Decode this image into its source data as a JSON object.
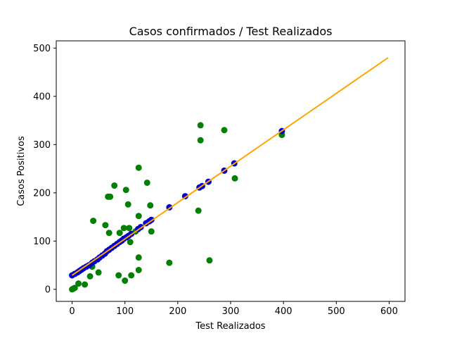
{
  "chart_data": {
    "type": "scatter",
    "title": "Casos confirmados / Test Realizados",
    "xlabel": "Test Realizados",
    "ylabel": "Casos Positivos",
    "xlim": [
      -30,
      630
    ],
    "ylim": [
      -25,
      515
    ],
    "xticks": [
      0,
      100,
      200,
      300,
      400,
      500,
      600
    ],
    "yticks": [
      0,
      100,
      200,
      300,
      400,
      500
    ],
    "grid": false,
    "series": [
      {
        "kind": "scatter",
        "color": "#008000",
        "points": [
          [
            0,
            0
          ],
          [
            2,
            1
          ],
          [
            5,
            3
          ],
          [
            12,
            12
          ],
          [
            24,
            10
          ],
          [
            34,
            27
          ],
          [
            40,
            142
          ],
          [
            38,
            47
          ],
          [
            50,
            35
          ],
          [
            63,
            133
          ],
          [
            68,
            192
          ],
          [
            72,
            192
          ],
          [
            70,
            117
          ],
          [
            80,
            215
          ],
          [
            90,
            117
          ],
          [
            88,
            29
          ],
          [
            98,
            127
          ],
          [
            100,
            18
          ],
          [
            102,
            206
          ],
          [
            106,
            176
          ],
          [
            108,
            127
          ],
          [
            110,
            98
          ],
          [
            112,
            29
          ],
          [
            120,
            120
          ],
          [
            126,
            252
          ],
          [
            126,
            152
          ],
          [
            126,
            66
          ],
          [
            126,
            40
          ],
          [
            142,
            221
          ],
          [
            148,
            174
          ],
          [
            150,
            120
          ],
          [
            184,
            55
          ],
          [
            239,
            163
          ],
          [
            243,
            340
          ],
          [
            243,
            309
          ],
          [
            260,
            60
          ],
          [
            288,
            330
          ],
          [
            308,
            230
          ],
          [
            397,
            320
          ]
        ]
      },
      {
        "kind": "scatter",
        "color": "#0000cd",
        "points": [
          [
            0,
            29
          ],
          [
            5,
            32
          ],
          [
            10,
            35
          ],
          [
            14,
            38
          ],
          [
            18,
            41
          ],
          [
            22,
            44
          ],
          [
            27,
            47
          ],
          [
            32,
            50
          ],
          [
            38,
            55
          ],
          [
            42,
            58
          ],
          [
            48,
            62
          ],
          [
            52,
            66
          ],
          [
            57,
            70
          ],
          [
            62,
            74
          ],
          [
            66,
            79
          ],
          [
            70,
            82
          ],
          [
            75,
            86
          ],
          [
            80,
            90
          ],
          [
            85,
            94
          ],
          [
            90,
            98
          ],
          [
            94,
            101
          ],
          [
            98,
            105
          ],
          [
            103,
            108
          ],
          [
            107,
            111
          ],
          [
            112,
            115
          ],
          [
            125,
            125
          ],
          [
            130,
            129
          ],
          [
            140,
            137
          ],
          [
            146,
            141
          ],
          [
            150,
            144
          ],
          [
            184,
            170
          ],
          [
            214,
            193
          ],
          [
            241,
            211
          ],
          [
            246,
            214
          ],
          [
            258,
            223
          ],
          [
            288,
            246
          ],
          [
            307,
            261
          ],
          [
            397,
            328
          ]
        ]
      },
      {
        "kind": "line",
        "color": "#ffa500",
        "x": [
          0,
          598
        ],
        "y": [
          29,
          480
        ]
      }
    ]
  }
}
